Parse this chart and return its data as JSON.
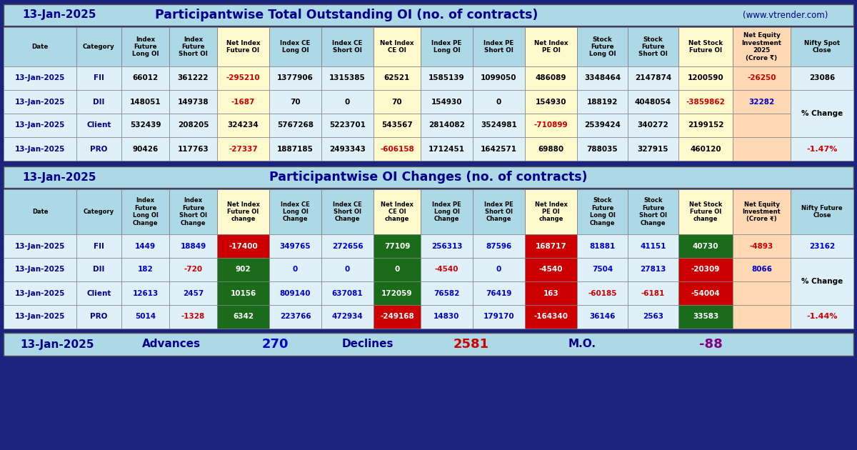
{
  "title1_date": "13-Jan-2025",
  "title1_main": "Participantwise Total Outstanding OI (no. of contracts)",
  "title1_sub": "(www.vtrender.com)",
  "title2_date": "13-Jan-2025",
  "title2_main": "Participantwise OI Changes (no. of contracts)",
  "footer_date": "13-Jan-2025",
  "footer_advances_label": "Advances",
  "footer_advances_val": "270",
  "footer_declines_label": "Declines",
  "footer_declines_val": "2581",
  "footer_mo_label": "M.O.",
  "footer_mo_val": "-88",
  "table1_headers": [
    "Date",
    "Category",
    "Index\nFuture\nLong OI",
    "Index\nFuture\nShort OI",
    "Net Index\nFuture OI",
    "Index CE\nLong OI",
    "Index CE\nShort OI",
    "Net Index\nCE OI",
    "Index PE\nLong OI",
    "Index PE\nShort OI",
    "Net Index\nPE OI",
    "Stock\nFuture\nLong OI",
    "Stock\nFuture\nShort OI",
    "Net Stock\nFuture OI",
    "Net Equity\nInvestment\n2025\n(Crore ₹)",
    "Nifty Spot\nClose"
  ],
  "table1_rows": [
    [
      "13-Jan-2025",
      "FII",
      "66012",
      "361222",
      "-295210",
      "1377906",
      "1315385",
      "62521",
      "1585139",
      "1099050",
      "486089",
      "3348464",
      "2147874",
      "1200590",
      "-26250",
      "23086"
    ],
    [
      "13-Jan-2025",
      "DII",
      "148051",
      "149738",
      "-1687",
      "70",
      "0",
      "70",
      "154930",
      "0",
      "154930",
      "188192",
      "4048054",
      "-3859862",
      "32282",
      ""
    ],
    [
      "13-Jan-2025",
      "Client",
      "532439",
      "208205",
      "324234",
      "5767268",
      "5223701",
      "543567",
      "2814082",
      "3524981",
      "-710899",
      "2539424",
      "340272",
      "2199152",
      "",
      ""
    ],
    [
      "13-Jan-2025",
      "PRO",
      "90426",
      "117763",
      "-27337",
      "1887185",
      "2493343",
      "-606158",
      "1712451",
      "1642571",
      "69880",
      "788035",
      "327915",
      "460120",
      "",
      ""
    ]
  ],
  "table1_pct_val": "-1.47%",
  "table2_headers": [
    "Date",
    "Category",
    "Index\nFuture\nLong OI\nChange",
    "Index\nFuture\nShort OI\nChange",
    "Net Index\nFuture OI\nchange",
    "Index CE\nLong OI\nChange",
    "Index CE\nShort OI\nChange",
    "Net Index\nCE OI\nchange",
    "Index PE\nLong OI\nChange",
    "Index PE\nShort OI\nChange",
    "Net Index\nPE OI\nchange",
    "Stock\nFuture\nLong OI\nChange",
    "Stock\nFuture\nShort OI\nChange",
    "Net Stock\nFuture OI\nchange",
    "Net Equity\nInvestment\n(Crore ₹)",
    "Nifty Future\nClose"
  ],
  "table2_rows": [
    [
      "13-Jan-2025",
      "FII",
      "1449",
      "18849",
      "-17400",
      "349765",
      "272656",
      "77109",
      "256313",
      "87596",
      "168717",
      "81881",
      "41151",
      "40730",
      "-4893",
      "23162"
    ],
    [
      "13-Jan-2025",
      "DII",
      "182",
      "-720",
      "902",
      "0",
      "0",
      "0",
      "-4540",
      "0",
      "-4540",
      "7504",
      "27813",
      "-20309",
      "8066",
      ""
    ],
    [
      "13-Jan-2025",
      "Client",
      "12613",
      "2457",
      "10156",
      "809140",
      "637081",
      "172059",
      "76582",
      "76419",
      "163",
      "-60185",
      "-6181",
      "-54004",
      "",
      ""
    ],
    [
      "13-Jan-2025",
      "PRO",
      "5014",
      "-1328",
      "6342",
      "223766",
      "472934",
      "-249168",
      "14830",
      "179170",
      "-164340",
      "36146",
      "2563",
      "33583",
      "",
      ""
    ]
  ],
  "table2_pct_val": "-1.44%",
  "table1_data_colors": [
    {
      "4": "red",
      "7": "black",
      "10": "black",
      "13": "black",
      "14": "red"
    },
    {
      "4": "red",
      "7": "black",
      "10": "black",
      "13": "red",
      "14": "blue"
    },
    {
      "4": "black",
      "7": "black",
      "10": "red",
      "13": "black"
    },
    {
      "4": "red",
      "7": "red",
      "10": "black",
      "13": "black"
    }
  ],
  "table2_net_bg": [
    {
      "4": "red",
      "7": "green",
      "10": "red",
      "13": "green"
    },
    {
      "4": "green",
      "7": "green",
      "10": "red",
      "13": "red"
    },
    {
      "4": "green",
      "7": "green",
      "10": "red",
      "13": "red"
    },
    {
      "4": "green",
      "7": "red",
      "10": "red",
      "13": "green"
    }
  ],
  "table2_data_colors": [
    {
      "2": "blue",
      "3": "blue",
      "5": "blue",
      "6": "blue",
      "8": "blue",
      "9": "blue",
      "11": "blue",
      "12": "blue",
      "14": "red"
    },
    {
      "2": "blue",
      "3": "red",
      "5": "blue",
      "6": "blue",
      "8": "red",
      "9": "blue",
      "11": "blue",
      "12": "blue",
      "14": "blue"
    },
    {
      "2": "blue",
      "3": "blue",
      "5": "blue",
      "6": "blue",
      "8": "blue",
      "9": "blue",
      "11": "red",
      "12": "red"
    },
    {
      "2": "blue",
      "3": "red",
      "5": "blue",
      "6": "blue",
      "8": "blue",
      "9": "blue",
      "11": "blue",
      "12": "blue"
    }
  ],
  "bg_color": "#1a237e",
  "header_bg": "#add8e6",
  "net_col_bg": "#fffacd",
  "net_equity_bg": "#ffd9b3",
  "row_bg": "#dff0f8",
  "title_row_bg": "#add8e6",
  "red_color": "#cc0000",
  "green_color": "#1a6b1a",
  "blue_color": "#0000cc",
  "dark_blue": "#00008b",
  "purple_color": "#800080",
  "black_color": "#000000",
  "white_color": "#ffffff"
}
